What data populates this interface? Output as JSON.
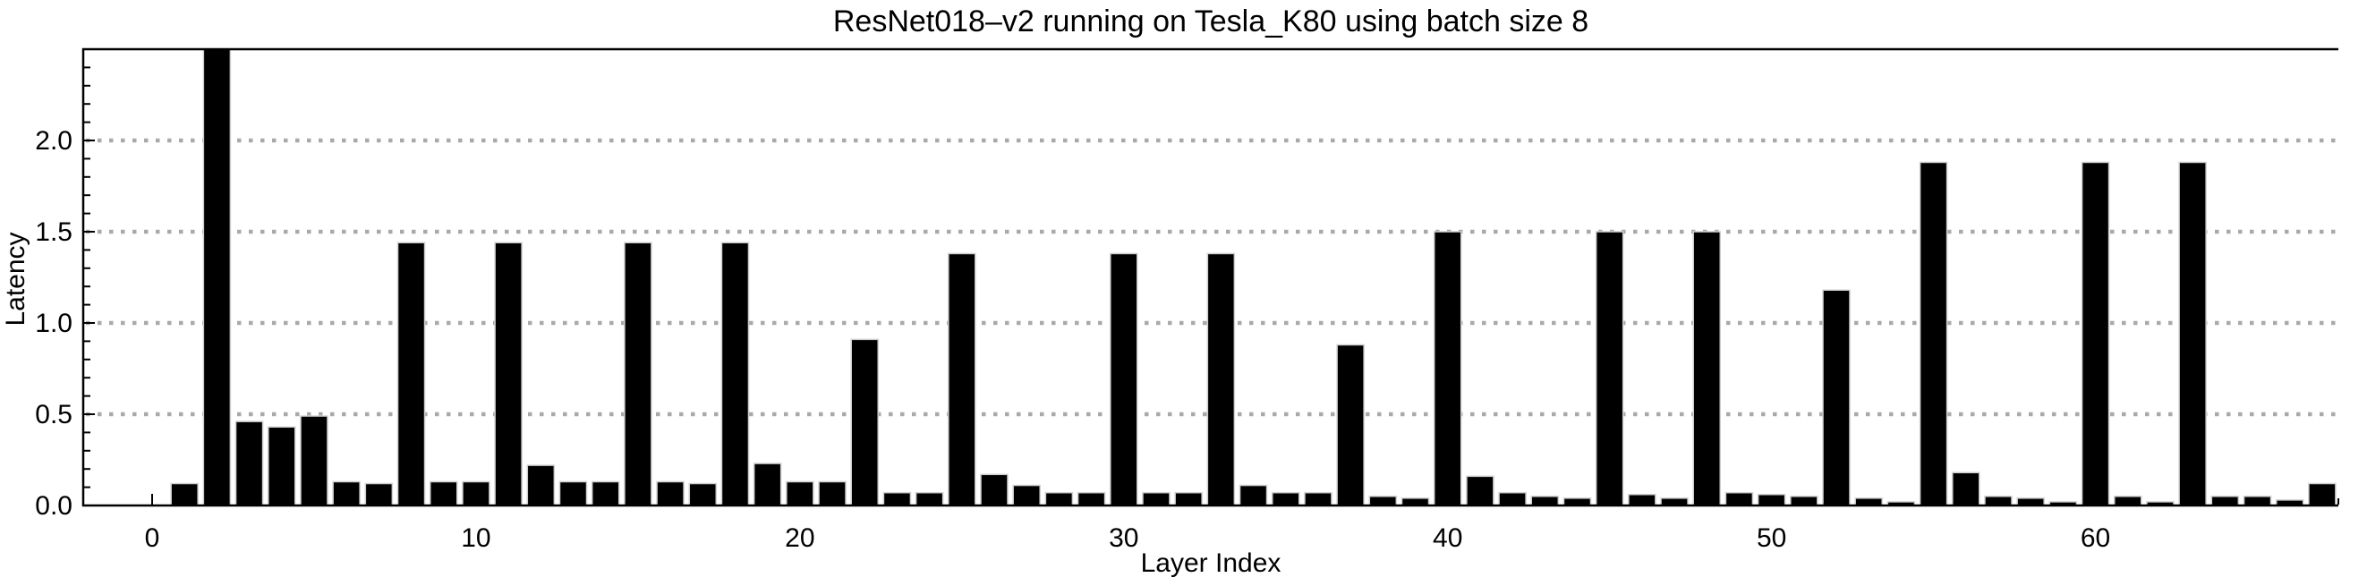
{
  "figure": {
    "background_color": "#ffffff"
  },
  "chart_data": {
    "type": "bar",
    "title": "ResNet018–v2 running on Tesla_K80 using batch size 8",
    "xlabel": "Layer Index",
    "ylabel": "Latency",
    "x_start_index": 1,
    "categories_note": "layer indices 1..67",
    "values": [
      0.12,
      2.5,
      0.46,
      0.43,
      0.49,
      0.13,
      0.12,
      1.44,
      0.13,
      0.13,
      1.44,
      0.22,
      0.13,
      0.13,
      1.44,
      0.13,
      0.12,
      1.44,
      0.23,
      0.13,
      0.13,
      0.91,
      0.07,
      0.07,
      1.38,
      0.17,
      0.11,
      0.07,
      0.07,
      1.38,
      0.07,
      0.07,
      1.38,
      0.11,
      0.07,
      0.07,
      0.88,
      0.05,
      0.04,
      1.5,
      0.16,
      0.07,
      0.05,
      0.04,
      1.5,
      0.06,
      0.04,
      1.5,
      0.07,
      0.06,
      0.05,
      1.18,
      0.04,
      0.02,
      1.88,
      0.18,
      0.05,
      0.04,
      0.02,
      1.88,
      0.05,
      0.02,
      1.88,
      0.05,
      0.05,
      0.03,
      0.12
    ],
    "ylim": [
      0,
      2.5
    ],
    "y_major_ticks": [
      0,
      0.5,
      1.0,
      1.5,
      2.0
    ],
    "y_tick_labels": [
      "0.0",
      "0.5",
      "1.0",
      "1.5",
      "2.0"
    ],
    "y_minor_step": 0.1,
    "x_major_ticks": [
      0,
      10,
      20,
      30,
      40,
      50,
      60
    ],
    "x_tick_labels": [
      "0",
      "10",
      "20",
      "30",
      "40",
      "50",
      "60"
    ],
    "x_end_ticks": [
      67.5
    ],
    "grid_values": [
      0.5,
      1.0,
      1.5,
      2.0
    ],
    "grid_on": true,
    "grid_style": "dotted",
    "legend": "none",
    "bar_color": "#000000",
    "bar_edge_color": "#cfcfcf",
    "grid_color": "#a9a9a9",
    "axis_color": "#000000",
    "text_color": "#000000"
  }
}
